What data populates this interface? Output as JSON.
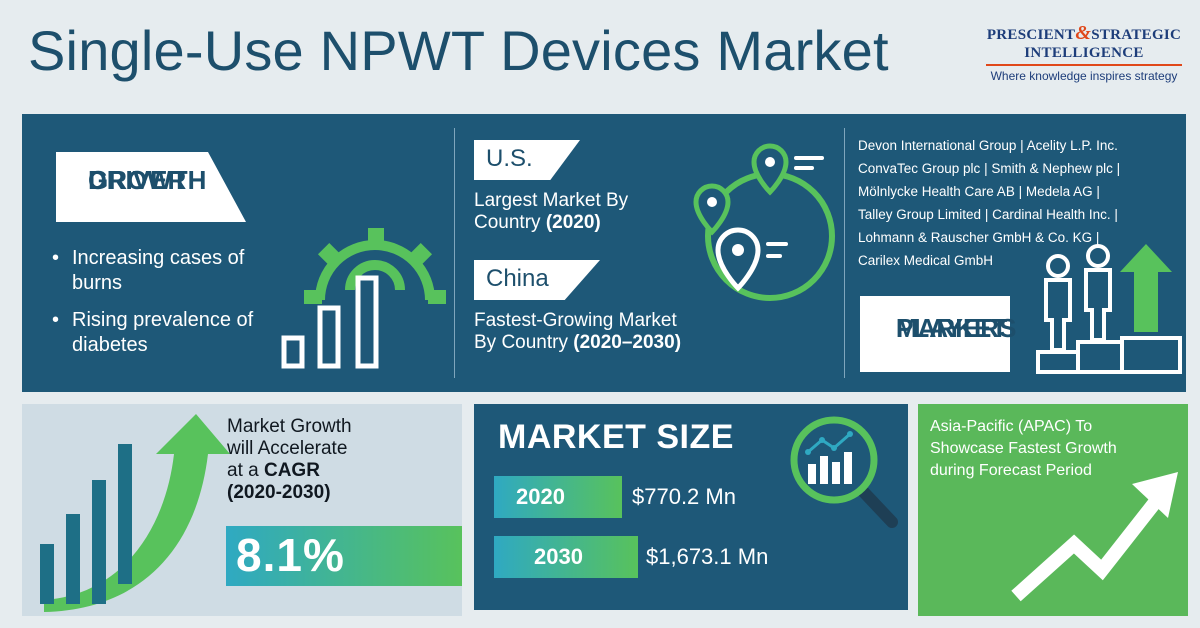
{
  "header": {
    "title": "Single-Use NPWT Devices Market",
    "logo": {
      "line1_a": "PRESCIENT",
      "line1_amp": "&",
      "line1_b": "STRATEGIC",
      "line2": "INTELLIGENCE",
      "tagline": "Where knowledge inspires strategy"
    }
  },
  "growth_driver": {
    "tag_line1": "GROWTH",
    "tag_line2": "DRIVER",
    "bullets": [
      "Increasing cases of burns",
      "Rising prevalence of diabetes"
    ],
    "icon": "gear-bar-chart-icon"
  },
  "regions": {
    "largest": {
      "tag": "U.S.",
      "desc_line1": "Largest Market By",
      "desc_line2": "Country",
      "desc_bold": "(2020)"
    },
    "fastest": {
      "tag": "China",
      "desc_line1": "Fastest-Growing Market",
      "desc_line2": "By Country",
      "desc_bold": "(2020–2030)"
    },
    "icon": "map-pin-icon"
  },
  "market_players": {
    "list": [
      "Devon International Group",
      "Acelity L.P. Inc.",
      "ConvaTec Group plc",
      "Smith & Nephew plc",
      "Mölnlycke Health Care AB",
      "Medela AG",
      "Talley Group Limited",
      "Cardinal Health Inc.",
      "Lohmann & Rauscher GmbH & Co. KG",
      "Carilex Medical GmbH"
    ],
    "tag_line1": "MARKET",
    "tag_line2": "PLAYERS",
    "icon": "podium-people-icon"
  },
  "cagr": {
    "text_line1": "Market Growth",
    "text_line2": "will Accelerate",
    "text_line3": "at a",
    "text_bold": "CAGR",
    "text_period": "(2020-2030)",
    "value": "8.1%",
    "icon": "growth-bars-arrow-icon"
  },
  "market_size": {
    "title": "MARKET SIZE",
    "rows": [
      {
        "year": "2020",
        "value": "$770.2 Mn"
      },
      {
        "year": "2030",
        "value": "$1,673.1 Mn"
      }
    ],
    "icon": "magnifier-chart-icon"
  },
  "apac": {
    "text": "Asia-Pacific (APAC) To Showcase Fastest Growth during Forecast Period",
    "icon": "trend-up-arrow-icon"
  },
  "colors": {
    "navy": "#1e5878",
    "title": "#1d4f6c",
    "green": "#5ab85a",
    "teal": "#2fa9c2",
    "light_panel": "#cfdce4",
    "logo_accent": "#e0481a"
  }
}
